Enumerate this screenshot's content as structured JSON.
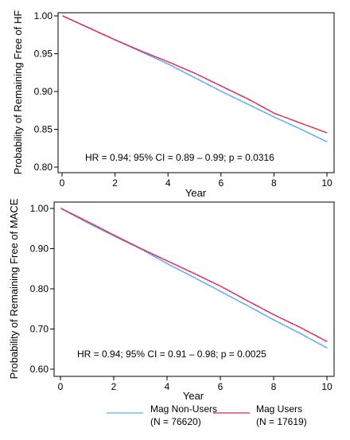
{
  "legend": {
    "items": [
      {
        "label": "Mag Non-Users",
        "n_label": "(N = 76620)",
        "color": "#5aaaf0"
      },
      {
        "label": "Mag Users",
        "n_label": "(N = 17619)",
        "color": "#d8285a"
      }
    ]
  },
  "chart_data": [
    {
      "type": "line",
      "title": "",
      "xlabel": "Year",
      "ylabel": "Probability of Remaining Free of HF",
      "xlim": [
        0,
        10
      ],
      "ylim": [
        0.8,
        1.0
      ],
      "xticks": [
        0,
        2,
        4,
        6,
        8,
        10
      ],
      "xtick_labels": [
        "0",
        "2",
        "4",
        "6",
        "8",
        "10"
      ],
      "yticks": [
        0.8,
        0.85,
        0.9,
        0.95,
        1.0
      ],
      "ytick_labels": [
        "0.80",
        "0.85",
        "0.90",
        "0.95",
        "1.00"
      ],
      "grid": false,
      "annotation": "HR = 0.94; 95% CI = 0.89 – 0.99; p = 0.0316",
      "x": [
        0,
        1,
        2,
        3,
        4,
        5,
        6,
        7,
        8,
        9,
        10
      ],
      "series": [
        {
          "name": "Mag Non-Users",
          "color": "#5aaaf0",
          "values": [
            1.0,
            0.984,
            0.968,
            0.952,
            0.936,
            0.918,
            0.9,
            0.883,
            0.866,
            0.85,
            0.833
          ]
        },
        {
          "name": "Mag Users",
          "color": "#d8285a",
          "values": [
            1.0,
            0.984,
            0.968,
            0.953,
            0.939,
            0.924,
            0.907,
            0.89,
            0.871,
            0.858,
            0.845
          ]
        }
      ]
    },
    {
      "type": "line",
      "title": "",
      "xlabel": "Year",
      "ylabel": "Probability of Remaining Free of MACE",
      "xlim": [
        0,
        10
      ],
      "ylim": [
        0.6,
        1.0
      ],
      "xticks": [
        0,
        2,
        4,
        6,
        8,
        10
      ],
      "xtick_labels": [
        "0",
        "2",
        "4",
        "6",
        "8",
        "10"
      ],
      "yticks": [
        0.6,
        0.7,
        0.8,
        0.9,
        1.0
      ],
      "ytick_labels": [
        "0.60",
        "0.70",
        "0.80",
        "0.90",
        "1.00"
      ],
      "grid": false,
      "annotation": "HR = 0.94; 95% CI = 0.91 – 0.98; p = 0.0025",
      "x": [
        0,
        1,
        2,
        3,
        4,
        5,
        6,
        7,
        8,
        9,
        10
      ],
      "series": [
        {
          "name": "Mag Non-Users",
          "color": "#5aaaf0",
          "values": [
            1.0,
            0.964,
            0.931,
            0.899,
            0.862,
            0.828,
            0.793,
            0.758,
            0.722,
            0.688,
            0.652
          ]
        },
        {
          "name": "Mag Users",
          "color": "#d8285a",
          "values": [
            1.0,
            0.967,
            0.933,
            0.9,
            0.869,
            0.838,
            0.806,
            0.77,
            0.735,
            0.703,
            0.668
          ]
        }
      ]
    }
  ]
}
